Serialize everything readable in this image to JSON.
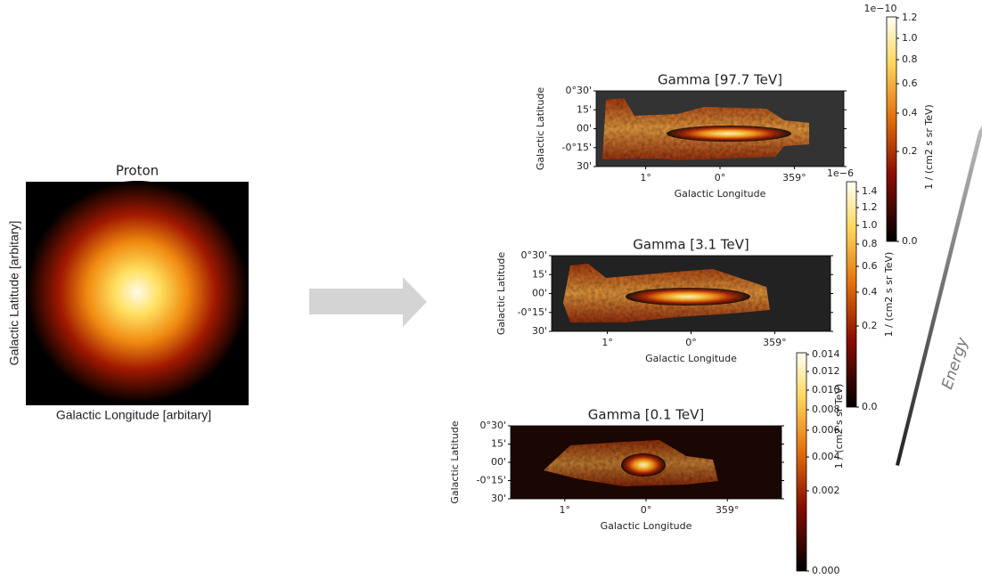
{
  "proton": {
    "title": "Proton",
    "xlabel": "Galactic Longitude [arbitary]",
    "ylabel": "Galactic Latitude [arbitary]"
  },
  "panels": [
    {
      "title": "Gamma [97.7 TeV]",
      "xlabel": "Galactic Longitude",
      "ylabel": "Galactic Latitude",
      "xticks": [
        "1°",
        "0°",
        "359°"
      ],
      "yticks": [
        "0°30'",
        "15'",
        "00'",
        "-0°15'",
        "30'"
      ],
      "colorbar": {
        "label": "1 / (cm2 s sr TeV)",
        "offset": "1e−10",
        "ticks": [
          "1.2",
          "1.0",
          "0.8",
          "0.6",
          "0.4",
          "0.2",
          "0.0"
        ]
      }
    },
    {
      "title": "Gamma [3.1 TeV]",
      "xlabel": "Galactic Longitude",
      "ylabel": "Galactic Latitude",
      "xticks": [
        "1°",
        "0°",
        "359°"
      ],
      "yticks": [
        "0°30'",
        "15'",
        "00'",
        "-0°15'",
        "30'"
      ],
      "colorbar": {
        "label": "1 / (cm2 s sr TeV)",
        "offset": "1e−6",
        "ticks": [
          "1.4",
          "1.2",
          "1.0",
          "0.8",
          "0.6",
          "0.4",
          "0.2",
          "0.0"
        ]
      }
    },
    {
      "title": "Gamma [0.1 TeV]",
      "xlabel": "Galactic Longitude",
      "ylabel": "Galactic Latitude",
      "xticks": [
        "1°",
        "0°",
        "359°"
      ],
      "yticks": [
        "0°30'",
        "15'",
        "00'",
        "-0°15'",
        "30'"
      ],
      "colorbar": {
        "label": "1 / (cm2 s sr TeV)",
        "offset": null,
        "ticks": [
          "0.014",
          "0.012",
          "0.010",
          "0.008",
          "0.006",
          "0.004",
          "0.002",
          "0.000"
        ]
      }
    }
  ],
  "energy_label": "Energy"
}
